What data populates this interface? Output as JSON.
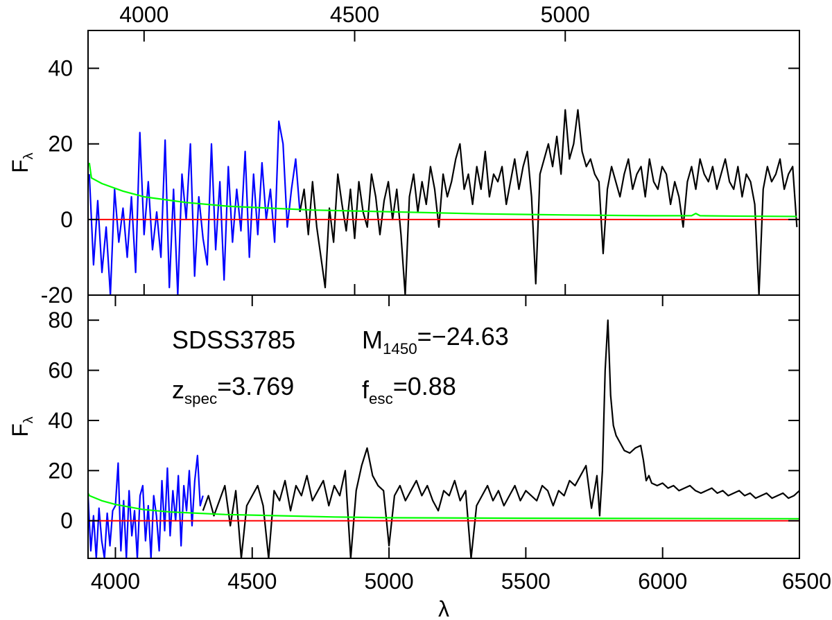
{
  "chart_data": [
    {
      "type": "line",
      "xlim": [
        3867,
        5556
      ],
      "ylim": [
        -20,
        50
      ],
      "xticks": [
        4000,
        4500,
        5000
      ],
      "yticks": [
        -20,
        0,
        20,
        40
      ],
      "ylabel": {
        "main": "F",
        "sub": "λ"
      },
      "reference_line": {
        "value": 0,
        "color": "#ff0000"
      },
      "series": [
        {
          "color": "#0000ff",
          "x": [
            3870,
            3880,
            3890,
            3900,
            3910,
            3920,
            3930,
            3940,
            3950,
            3960,
            3970,
            3980,
            3990,
            4000,
            4010,
            4020,
            4030,
            4040,
            4050,
            4060,
            4070,
            4080,
            4090,
            4100,
            4110,
            4120,
            4130,
            4140,
            4150,
            4160,
            4170,
            4180,
            4190,
            4200,
            4210,
            4220,
            4230,
            4240,
            4250,
            4260,
            4270,
            4280,
            4290,
            4300,
            4310,
            4320,
            4330,
            4340,
            4350,
            4360,
            4370
          ],
          "values": [
            12,
            -12,
            5,
            -14,
            -2,
            -20,
            8,
            -6,
            3,
            -10,
            6,
            -14,
            23,
            -4,
            10,
            -8,
            2,
            -10,
            21,
            -18,
            8,
            -20,
            12,
            0,
            20,
            -15,
            6,
            -5,
            -12,
            20,
            -8,
            10,
            -16,
            14,
            -6,
            8,
            -3,
            18,
            -10,
            12,
            -4,
            15,
            0,
            8,
            -6,
            26,
            20,
            -2,
            8,
            16,
            2
          ]
        },
        {
          "color": "#000000",
          "x": [
            4370,
            4380,
            4390,
            4400,
            4410,
            4420,
            4430,
            4440,
            4450,
            4460,
            4470,
            4480,
            4490,
            4500,
            4510,
            4520,
            4530,
            4540,
            4550,
            4560,
            4570,
            4580,
            4590,
            4600,
            4610,
            4620,
            4630,
            4640,
            4650,
            4660,
            4670,
            4680,
            4690,
            4700,
            4710,
            4720,
            4730,
            4740,
            4750,
            4760,
            4770,
            4780,
            4790,
            4800,
            4810,
            4820,
            4830,
            4840,
            4850,
            4860,
            4870,
            4880,
            4890,
            4900,
            4910,
            4920,
            4930,
            4940,
            4950,
            4960,
            4970,
            4980,
            4990,
            5000,
            5010,
            5020,
            5030,
            5040,
            5050,
            5060,
            5070,
            5080,
            5090,
            5100,
            5110,
            5120,
            5130,
            5140,
            5150,
            5160,
            5170,
            5180,
            5190,
            5200,
            5210,
            5220,
            5230,
            5240,
            5250,
            5260,
            5270,
            5280,
            5290,
            5300,
            5310,
            5320,
            5330,
            5340,
            5350,
            5360,
            5370,
            5380,
            5390,
            5400,
            5410,
            5420,
            5430,
            5440,
            5450,
            5460,
            5470,
            5480,
            5490,
            5500,
            5510,
            5520,
            5530,
            5540,
            5550
          ],
          "values": [
            2,
            8,
            -4,
            10,
            -2,
            -10,
            -18,
            3,
            -6,
            12,
            4,
            -3,
            8,
            -5,
            10,
            2,
            -2,
            12,
            6,
            -4,
            5,
            10,
            0,
            8,
            -4,
            -20,
            6,
            12,
            2,
            10,
            4,
            14,
            8,
            -2,
            12,
            6,
            10,
            16,
            20,
            8,
            12,
            4,
            14,
            8,
            18,
            6,
            12,
            10,
            14,
            4,
            10,
            16,
            8,
            14,
            18,
            6,
            -17,
            12,
            16,
            20,
            14,
            22,
            12,
            29,
            16,
            20,
            29,
            18,
            14,
            16,
            12,
            10,
            -9,
            8,
            14,
            10,
            6,
            12,
            16,
            8,
            12,
            14,
            6,
            16,
            10,
            8,
            14,
            12,
            4,
            10,
            6,
            -2,
            10,
            14,
            8,
            16,
            12,
            10,
            14,
            8,
            12,
            16,
            10,
            8,
            14,
            6,
            12,
            10,
            4,
            -20,
            8,
            14,
            10,
            12,
            16,
            8,
            12,
            14,
            -2
          ]
        },
        {
          "color": "#00ff00",
          "x": [
            3870,
            3875,
            3900,
            3950,
            4000,
            4100,
            4200,
            4300,
            4400,
            4600,
            4800,
            5000,
            5200,
            5300,
            5310,
            5320,
            5400,
            5550
          ],
          "values": [
            15,
            11,
            9.5,
            7.5,
            6,
            4.5,
            3.5,
            3,
            2.5,
            2,
            1.5,
            1.2,
            1,
            1,
            1.6,
            1,
            0.9,
            0.8
          ]
        }
      ]
    },
    {
      "type": "line",
      "xlim": [
        3900,
        6500
      ],
      "ylim": [
        -15,
        90
      ],
      "xticks": [
        4000,
        4500,
        5000,
        5500,
        6000,
        6500
      ],
      "yticks": [
        0,
        20,
        40,
        60,
        80
      ],
      "xlabel": "λ",
      "ylabel": {
        "main": "F",
        "sub": "λ"
      },
      "reference_line": {
        "value": 0,
        "color": "#ff0000"
      },
      "annotations": [
        {
          "main": "SDSS3785"
        },
        {
          "main": "M",
          "sub": "1450",
          "after": "=−24.63"
        },
        {
          "main": "z",
          "sub": "spec",
          "after": "=3.769"
        },
        {
          "main": "f",
          "sub": "esc",
          "after": "=0.88"
        }
      ],
      "series": [
        {
          "color": "#0000ff",
          "x": [
            3900,
            3910,
            3920,
            3930,
            3940,
            3950,
            3960,
            3970,
            3980,
            3990,
            4000,
            4010,
            4020,
            4030,
            4040,
            4050,
            4060,
            4070,
            4080,
            4090,
            4100,
            4110,
            4120,
            4130,
            4140,
            4150,
            4160,
            4170,
            4180,
            4190,
            4200,
            4210,
            4220,
            4230,
            4240,
            4250,
            4260,
            4270,
            4280,
            4290,
            4300,
            4310,
            4320
          ],
          "values": [
            10,
            -12,
            2,
            -15,
            5,
            -8,
            -15,
            3,
            -10,
            4,
            6,
            23,
            -12,
            8,
            -15,
            12,
            -6,
            4,
            -15,
            10,
            14,
            -8,
            6,
            -15,
            10,
            2,
            -12,
            16,
            -4,
            21,
            -6,
            12,
            0,
            18,
            -10,
            14,
            4,
            20,
            -2,
            16,
            26,
            6,
            10
          ]
        },
        {
          "color": "#000000",
          "x": [
            4320,
            4340,
            4360,
            4380,
            4400,
            4420,
            4440,
            4460,
            4480,
            4500,
            4520,
            4540,
            4560,
            4580,
            4600,
            4620,
            4640,
            4660,
            4680,
            4700,
            4720,
            4740,
            4760,
            4780,
            4800,
            4820,
            4840,
            4860,
            4880,
            4900,
            4920,
            4940,
            4960,
            4980,
            5000,
            5020,
            5040,
            5060,
            5080,
            5100,
            5120,
            5140,
            5160,
            5180,
            5200,
            5220,
            5240,
            5260,
            5280,
            5300,
            5320,
            5340,
            5360,
            5380,
            5400,
            5420,
            5440,
            5460,
            5480,
            5500,
            5520,
            5540,
            5560,
            5580,
            5600,
            5620,
            5640,
            5660,
            5680,
            5700,
            5720,
            5740,
            5760,
            5770,
            5780,
            5790,
            5800,
            5810,
            5820,
            5830,
            5840,
            5860,
            5880,
            5900,
            5920,
            5930,
            5940,
            5950,
            5960,
            5980,
            6000,
            6020,
            6040,
            6060,
            6080,
            6100,
            6120,
            6140,
            6160,
            6180,
            6200,
            6220,
            6240,
            6260,
            6280,
            6300,
            6320,
            6340,
            6360,
            6380,
            6400,
            6420,
            6440,
            6460,
            6480,
            6500
          ],
          "values": [
            4,
            10,
            2,
            8,
            14,
            -2,
            12,
            -15,
            6,
            10,
            14,
            6,
            -15,
            12,
            8,
            16,
            4,
            14,
            10,
            18,
            8,
            12,
            16,
            6,
            14,
            10,
            20,
            -15,
            12,
            22,
            29,
            18,
            14,
            12,
            -10,
            10,
            14,
            8,
            12,
            16,
            10,
            14,
            8,
            4,
            12,
            10,
            16,
            8,
            12,
            -15,
            6,
            10,
            14,
            8,
            12,
            6,
            10,
            14,
            8,
            12,
            10,
            8,
            14,
            12,
            6,
            12,
            10,
            16,
            14,
            18,
            22,
            5,
            18,
            2,
            20,
            60,
            80,
            50,
            38,
            34,
            32,
            28,
            27,
            29,
            30,
            24,
            16,
            18,
            15,
            14,
            15,
            13,
            14,
            12,
            13,
            14,
            12,
            11,
            12,
            13,
            11,
            12,
            10,
            11,
            12,
            10,
            11,
            9,
            10,
            11,
            9,
            10,
            11,
            9,
            10,
            12
          ]
        },
        {
          "color": "#00ff00",
          "x": [
            3900,
            3905,
            3950,
            4000,
            4100,
            4200,
            4300,
            4400,
            4600,
            4800,
            5000,
            5500,
            6000,
            6500
          ],
          "values": [
            11,
            10,
            8,
            6.5,
            4.5,
            3.5,
            3,
            2.5,
            2,
            1.5,
            1.2,
            1,
            0.9,
            0.8
          ]
        }
      ]
    }
  ]
}
